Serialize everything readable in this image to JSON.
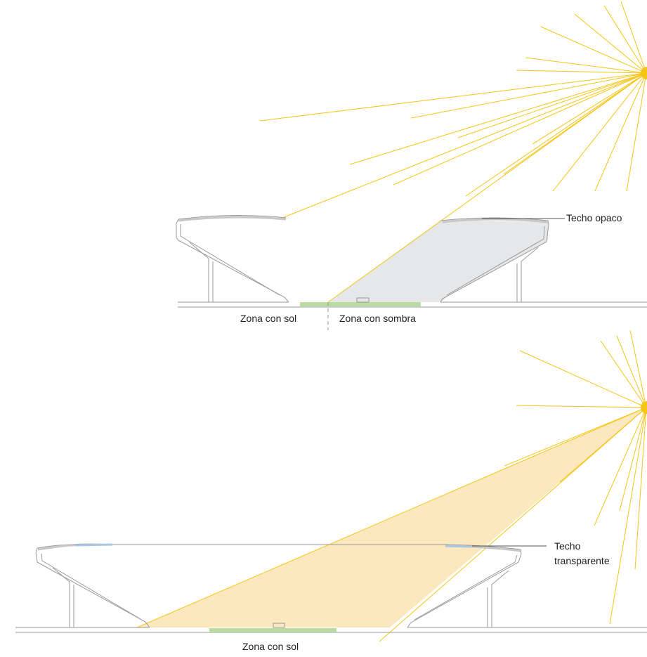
{
  "colors": {
    "ray": "#f5c518",
    "sun": "#f5c518",
    "structure": "#9a9a9a",
    "shadow_fill": "#e6e7e9",
    "light_fill": "#fbe8bf",
    "grass": "#b9dca0",
    "glass": "#a9c6e6",
    "text": "#222222"
  },
  "top_diagram": {
    "label_sun_zone": "Zona con sol",
    "label_shadow_zone": "Zona con sombra",
    "label_roof": "Techo opaco"
  },
  "bottom_diagram": {
    "label_sun_zone": "Zona con sol",
    "label_roof_line1": "Techo",
    "label_roof_line2": "transparente"
  },
  "icons": [
    "sun-icon",
    "sun-icon"
  ]
}
